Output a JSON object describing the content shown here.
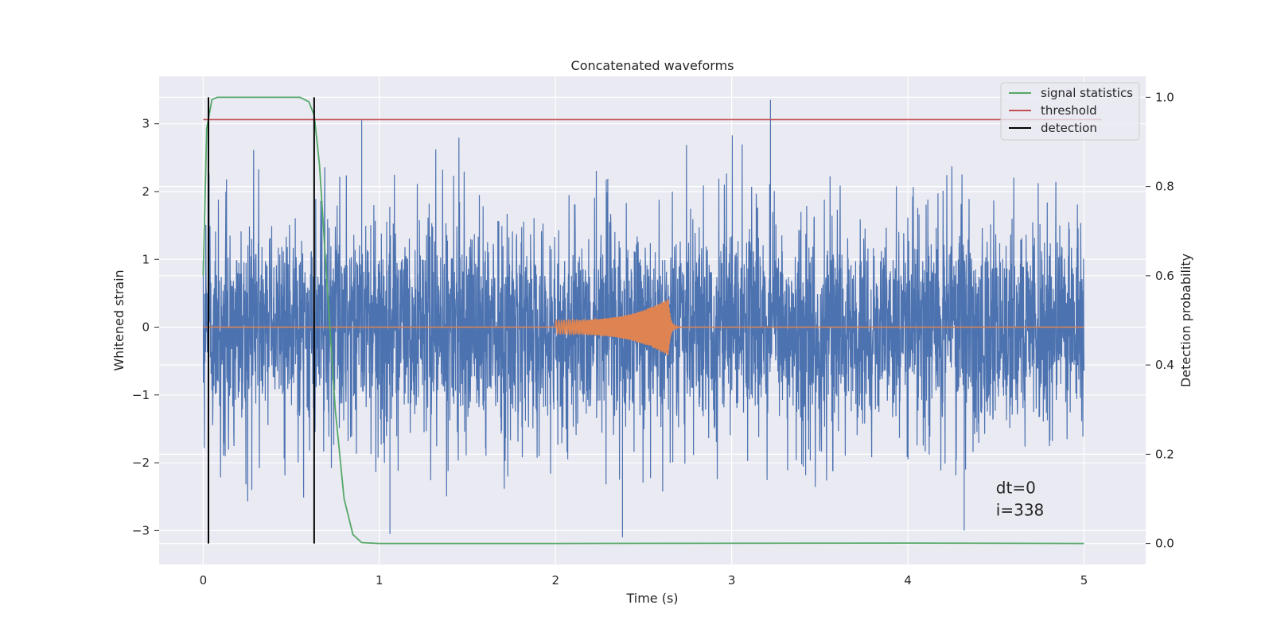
{
  "chart_data": {
    "type": "line",
    "title": "Concatenated waveforms",
    "xlabel": "Time (s)",
    "ylabel": "Whitened strain",
    "y2label": "Detection probability",
    "xlim": [
      -0.25,
      5.35
    ],
    "ylim": [
      -3.5,
      3.7
    ],
    "y2lim": [
      -0.047,
      1.047
    ],
    "x_ticks": [
      "0",
      "1",
      "2",
      "3",
      "4",
      "5"
    ],
    "y_ticks": [
      "−3",
      "−2",
      "−1",
      "0",
      "1",
      "2",
      "3"
    ],
    "y2_ticks": [
      "0.0",
      "0.2",
      "0.4",
      "0.6",
      "0.8",
      "1.0"
    ],
    "grid": true,
    "legend_position": "top-right",
    "legend": [
      {
        "label": "signal statistics",
        "color": "#55a868"
      },
      {
        "label": "threshold",
        "color": "#c44e52"
      },
      {
        "label": "detection",
        "color": "#000000"
      }
    ],
    "series": [
      {
        "color": "#4c72b0",
        "axis": "left",
        "kind": "noise",
        "x_range": [
          0,
          5
        ],
        "typical_peak_high": 2.1,
        "typical_peak_low": -2.1,
        "max": 3.35,
        "min": -3.1
      },
      {
        "color": "#dd8452",
        "axis": "left",
        "kind": "chirp",
        "x_range": [
          0,
          5
        ],
        "chirp_start": 2.0,
        "chirp_peak_time": 2.64,
        "chirp_end": 2.95,
        "amplitude_start": 0.1,
        "amplitude_peak": 0.42
      },
      {
        "name": "signal statistics",
        "color": "#55a868",
        "axis": "right",
        "x": [
          0.0,
          0.02,
          0.05,
          0.08,
          0.15,
          0.55,
          0.6,
          0.63,
          0.66,
          0.7,
          0.75,
          0.8,
          0.85,
          0.9,
          1.0,
          2.0,
          4.0,
          5.0
        ],
        "y": [
          0.6,
          0.93,
          0.995,
          1.0,
          1.0,
          1.0,
          0.99,
          0.96,
          0.85,
          0.6,
          0.3,
          0.1,
          0.02,
          0.002,
          0.0,
          0.0,
          0.001,
          0.0
        ]
      },
      {
        "name": "threshold",
        "color": "#c44e52",
        "axis": "right",
        "x": [
          0,
          5.1
        ],
        "y": [
          0.95,
          0.95
        ]
      },
      {
        "name": "detection",
        "color": "#000000",
        "axis": "right",
        "kind": "vlines",
        "x": [
          0.03,
          0.63
        ],
        "y": [
          0.0,
          1.0
        ]
      }
    ],
    "annotation": {
      "line1": "dt=0",
      "line2": "i=338",
      "x": 4.5,
      "y": -2.45
    }
  }
}
